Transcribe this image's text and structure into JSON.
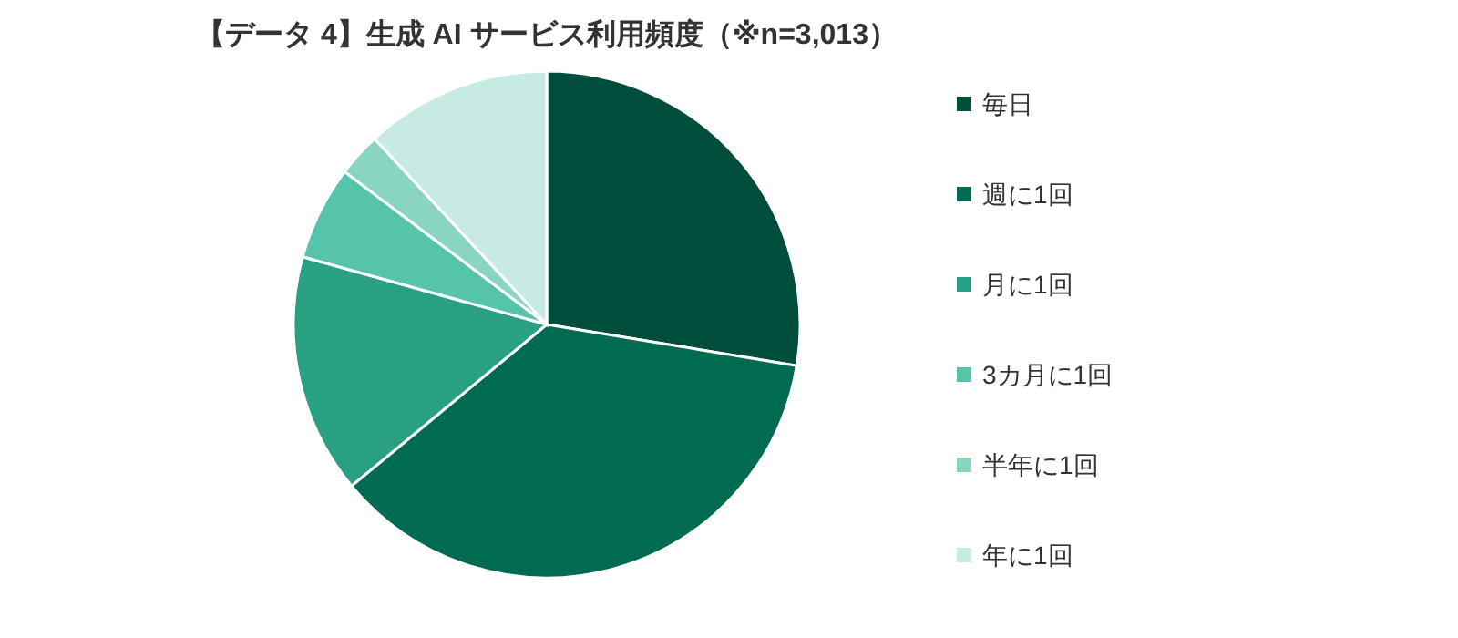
{
  "chart_data": {
    "type": "pie",
    "title": "【データ 4】生成 AI サービス利用頻度（※n=3,013）",
    "categories": [
      "毎日",
      "週に1回",
      "月に1回",
      "3カ月に1回",
      "半年に1回",
      "年に1回"
    ],
    "values": [
      27.6,
      36.4,
      15.3,
      6.0,
      2.8,
      11.9
    ],
    "colors": [
      "#004d3c",
      "#006b50",
      "#2aa083",
      "#56c4aa",
      "#89d5c2",
      "#c7ebe2"
    ],
    "legend": "right"
  }
}
